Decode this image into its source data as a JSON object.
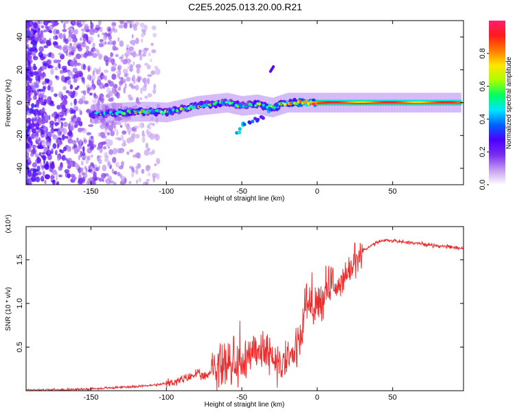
{
  "figure": {
    "title": "C2E5.2025.013.20.00.R21"
  },
  "chart_data": [
    {
      "type": "heatmap",
      "title": "C2E5.2025.013.20.00.R21",
      "xlabel": "Height of straight line (km)",
      "ylabel": "Frequency (Hz)",
      "xlim": [
        -193,
        97
      ],
      "ylim": [
        -50,
        50
      ],
      "xticks": [
        -150,
        -100,
        -50,
        0,
        50
      ],
      "yticks": [
        -40,
        -20,
        0,
        20,
        40
      ],
      "colorbar": {
        "label": "Normalized spectral amplitude",
        "range": [
          0,
          1
        ],
        "ticks": [
          "0.0",
          "0.2",
          "0.4",
          "0.6",
          "0.8"
        ],
        "colormap": [
          "#ffffff",
          "#c39bf0",
          "#7a2cf0",
          "#4b00ff",
          "#0060ff",
          "#00e5ff",
          "#00ff60",
          "#a8ff00",
          "#ffe600",
          "#ff7a00",
          "#ff1a1a",
          "#ff1f6e"
        ]
      },
      "ridge": {
        "description_free": true,
        "x": [
          -150,
          -140,
          -130,
          -120,
          -110,
          -100,
          -90,
          -80,
          -70,
          -60,
          -50,
          -40,
          -30,
          -20,
          -10,
          0,
          10,
          20,
          30,
          40,
          50,
          60,
          70,
          80,
          90,
          95
        ],
        "y": [
          -7,
          -6.5,
          -6,
          -5.5,
          -5.5,
          -6,
          -4,
          -2,
          -1,
          0,
          -2,
          -1,
          -3,
          0,
          0,
          0,
          0,
          0,
          0,
          0,
          0,
          0,
          0,
          0,
          0,
          0
        ],
        "amplitude": [
          0.35,
          0.4,
          0.45,
          0.45,
          0.5,
          0.55,
          0.5,
          0.5,
          0.45,
          0.45,
          0.4,
          0.5,
          0.55,
          0.6,
          0.75,
          0.9,
          0.85,
          0.85,
          0.9,
          0.85,
          0.85,
          0.85,
          0.85,
          0.85,
          0.85,
          0.85
        ]
      },
      "side_branch": {
        "x": [
          -52,
          -48,
          -44,
          -40,
          -36,
          -32,
          -28
        ],
        "y": [
          -17,
          -14,
          -12,
          -10,
          -8,
          -5,
          -3
        ],
        "amplitude": [
          0.45,
          0.4,
          0.35,
          0.3,
          0.3,
          0.35,
          0.4
        ]
      },
      "upper_blob": {
        "x": [
          -31,
          -29
        ],
        "y": [
          19,
          22
        ],
        "amplitude": 0.25
      },
      "noise_region": {
        "x": [
          -193,
          -110
        ],
        "amplitude": 0.2
      }
    },
    {
      "type": "line",
      "xlabel": "Height of straight line (km)",
      "ylabel": "SNR (10 * v/v)",
      "y_multiplier": "(x10⁴)",
      "xlim": [
        -193,
        97
      ],
      "ylim": [
        0,
        1.88
      ],
      "xticks": [
        -150,
        -100,
        -50,
        0,
        50
      ],
      "yticks": [
        0.5,
        1.0,
        1.5
      ],
      "ytick_labels": [
        "0.5",
        "1.0",
        "1.5"
      ],
      "color": "#ee2c2c",
      "series": [
        {
          "x": [
            -193,
            -170,
            -150,
            -140,
            -130,
            -120,
            -110,
            -100,
            -95,
            -90,
            -85,
            -80,
            -75,
            -70,
            -65,
            -60,
            -55,
            -50,
            -45,
            -40,
            -35,
            -30,
            -25,
            -20,
            -15,
            -10,
            -8,
            -5,
            0,
            5,
            10,
            15,
            20,
            25,
            30,
            35,
            40,
            45,
            50,
            60,
            70,
            80,
            90,
            97
          ],
          "y": [
            0.01,
            0.01,
            0.02,
            0.03,
            0.04,
            0.05,
            0.06,
            0.08,
            0.1,
            0.12,
            0.15,
            0.2,
            0.15,
            0.22,
            0.3,
            0.3,
            0.28,
            0.35,
            0.4,
            0.5,
            0.45,
            0.35,
            0.3,
            0.35,
            0.45,
            0.65,
            1.05,
            0.95,
            1.0,
            1.1,
            1.25,
            1.15,
            1.35,
            1.45,
            1.6,
            1.65,
            1.7,
            1.72,
            1.72,
            1.7,
            1.68,
            1.66,
            1.64,
            1.63
          ]
        }
      ]
    }
  ]
}
